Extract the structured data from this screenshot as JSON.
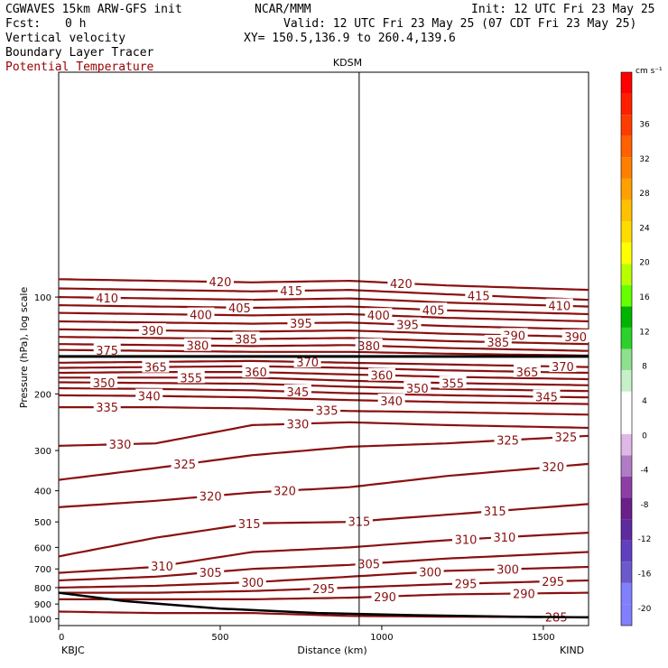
{
  "header": {
    "model": "CGWAVES 15km ARW-GFS init",
    "org": "NCAR/MMM",
    "init": "Init: 12 UTC Fri 23 May 25",
    "fcst_label": "Fcst:",
    "fcst_value": "0 h",
    "valid": "Valid: 12 UTC Fri 23 May 25 (07 CDT Fri 23 May 25)",
    "fields": [
      "Vertical velocity",
      "Boundary Layer Tracer",
      "Potential Temperature"
    ],
    "xy": "XY= 150.5,136.9 to 260.4,139.6"
  },
  "colors": {
    "theta_contour": "#8a1010",
    "tropopause_line": "#000000",
    "terrain_line": "#000000"
  },
  "chart_data": {
    "type": "line",
    "title": "",
    "xlabel": "Distance (km)",
    "ylabel": "Pressure (hPa), log scale",
    "y_scale": "log",
    "xlim": [
      0,
      1640
    ],
    "ylim": [
      1050,
      20
    ],
    "x_ticks": [
      0,
      500,
      1000,
      1500
    ],
    "y_ticks": [
      100,
      200,
      300,
      400,
      500,
      600,
      700,
      800,
      900,
      1000
    ],
    "station_labels": {
      "left": "KBJC",
      "right": "KIND",
      "top": "KDSM"
    },
    "station_marker_km": 930,
    "grid": false,
    "legend": "colorbar-right",
    "colorbar": {
      "units": "cm s⁻¹",
      "ticks": [
        -20,
        -16,
        -12,
        -8,
        -4,
        0,
        4,
        8,
        12,
        16,
        20,
        24,
        28,
        32,
        36
      ],
      "colors": [
        "#7f7fff",
        "#8080ff",
        "#6a5acd",
        "#6040c0",
        "#5e2b9e",
        "#6a1f8a",
        "#8e3fa6",
        "#b07cc6",
        "#e0b8e8",
        "#ffffff",
        "#ffffff",
        "#c8f0c8",
        "#8ee08e",
        "#2bd22b",
        "#00b400",
        "#66ff00",
        "#b8ff00",
        "#ffff00",
        "#ffdc00",
        "#ffc000",
        "#ffa000",
        "#ff8000",
        "#ff6000",
        "#ff3c00",
        "#ff1e00",
        "#ff0000"
      ]
    },
    "theta_contour_interval_K": 5,
    "theta_labels": [
      {
        "theta": 420,
        "x": [
          500,
          1060
        ]
      },
      {
        "theta": 415,
        "x": [
          720,
          1300
        ]
      },
      {
        "theta": 410,
        "x": [
          150,
          1550
        ]
      },
      {
        "theta": 405,
        "x": [
          560,
          1160
        ]
      },
      {
        "theta": 400,
        "x": [
          440,
          990
        ]
      },
      {
        "theta": 395,
        "x": [
          750,
          1080
        ]
      },
      {
        "theta": 390,
        "x": [
          290,
          1410,
          1600
        ]
      },
      {
        "theta": 385,
        "x": [
          580,
          1360
        ]
      },
      {
        "theta": 380,
        "x": [
          430,
          960
        ]
      },
      {
        "theta": 375,
        "x": [
          150
        ]
      },
      {
        "theta": 370,
        "x": [
          770,
          1560
        ]
      },
      {
        "theta": 365,
        "x": [
          300,
          1450
        ]
      },
      {
        "theta": 360,
        "x": [
          610,
          1000
        ]
      },
      {
        "theta": 355,
        "x": [
          410,
          1220
        ]
      },
      {
        "theta": 350,
        "x": [
          140,
          1110
        ]
      },
      {
        "theta": 345,
        "x": [
          740,
          1510
        ]
      },
      {
        "theta": 340,
        "x": [
          280,
          1030
        ]
      },
      {
        "theta": 335,
        "x": [
          150,
          830
        ]
      },
      {
        "theta": 330,
        "x": [
          190,
          740
        ]
      },
      {
        "theta": 325,
        "x": [
          390,
          1390,
          1570
        ]
      },
      {
        "theta": 320,
        "x": [
          470,
          700,
          1530
        ]
      },
      {
        "theta": 315,
        "x": [
          590,
          930,
          1350
        ]
      },
      {
        "theta": 310,
        "x": [
          320,
          1260,
          1380
        ]
      },
      {
        "theta": 305,
        "x": [
          470,
          960
        ]
      },
      {
        "theta": 300,
        "x": [
          600,
          1150,
          1390
        ]
      },
      {
        "theta": 295,
        "x": [
          820,
          1260,
          1530
        ]
      },
      {
        "theta": 290,
        "x": [
          1010,
          1440
        ]
      },
      {
        "theta": 285,
        "x": [
          1540
        ]
      }
    ],
    "theta_lines_pressure_hPa": [
      {
        "theta": 420,
        "x": [
          0,
          300,
          600,
          900,
          1200,
          1640
        ],
        "p": [
          88,
          89,
          90,
          89,
          92,
          95
        ]
      },
      {
        "theta": 415,
        "x": [
          0,
          300,
          600,
          900,
          1200,
          1640
        ],
        "p": [
          94,
          95,
          96,
          95,
          98,
          102
        ]
      },
      {
        "theta": 410,
        "x": [
          0,
          300,
          600,
          900,
          1200,
          1640
        ],
        "p": [
          100,
          101,
          102,
          101,
          104,
          107
        ]
      },
      {
        "theta": 405,
        "x": [
          0,
          300,
          600,
          900,
          1200,
          1640
        ],
        "p": [
          106,
          107,
          108,
          107,
          110,
          113
        ]
      },
      {
        "theta": 400,
        "x": [
          0,
          300,
          600,
          900,
          1200,
          1640
        ],
        "p": [
          112,
          113,
          114,
          113,
          116,
          119
        ]
      },
      {
        "theta": 395,
        "x": [
          0,
          300,
          600,
          900,
          1200,
          1640
        ],
        "p": [
          119,
          120,
          121,
          120,
          123,
          126
        ]
      },
      {
        "theta": 390,
        "x": [
          0,
          300,
          600,
          900,
          1200,
          1640
        ],
        "p": [
          126,
          127,
          128,
          127,
          130,
          133
        ]
      },
      {
        "theta": 385,
        "x": [
          0,
          300,
          600,
          900,
          1200,
          1640
        ],
        "p": [
          133,
          134,
          135,
          134,
          137,
          140
        ]
      },
      {
        "theta": 380,
        "x": [
          0,
          300,
          600,
          900,
          1200,
          1640
        ],
        "p": [
          140,
          141,
          142,
          141,
          144,
          147
        ]
      },
      {
        "theta": 375,
        "x": [
          0,
          300,
          600,
          900,
          1200,
          1640
        ],
        "p": [
          146,
          147,
          148,
          148,
          150,
          152
        ]
      },
      {
        "theta": 370,
        "x": [
          0,
          300,
          600,
          900,
          1200,
          1640
        ],
        "p": [
          160,
          159,
          158,
          160,
          162,
          165
        ]
      },
      {
        "theta": 365,
        "x": [
          0,
          300,
          600,
          900,
          1200,
          1640
        ],
        "p": [
          166,
          165,
          164,
          166,
          169,
          172
        ]
      },
      {
        "theta": 360,
        "x": [
          0,
          300,
          600,
          900,
          1200,
          1640
        ],
        "p": [
          172,
          171,
          171,
          174,
          177,
          180
        ]
      },
      {
        "theta": 355,
        "x": [
          0,
          300,
          600,
          900,
          1200,
          1640
        ],
        "p": [
          178,
          178,
          178,
          182,
          185,
          188
        ]
      },
      {
        "theta": 350,
        "x": [
          0,
          300,
          600,
          900,
          1200,
          1640
        ],
        "p": [
          184,
          185,
          186,
          190,
          193,
          196
        ]
      },
      {
        "theta": 345,
        "x": [
          0,
          300,
          600,
          900,
          1200,
          1640
        ],
        "p": [
          192,
          193,
          195,
          199,
          202,
          205
        ]
      },
      {
        "theta": 340,
        "x": [
          0,
          300,
          600,
          900,
          1200,
          1640
        ],
        "p": [
          202,
          203,
          205,
          209,
          212,
          215
        ]
      },
      {
        "theta": 335,
        "x": [
          0,
          300,
          600,
          900,
          1200,
          1640
        ],
        "p": [
          220,
          220,
          222,
          226,
          228,
          232
        ]
      },
      {
        "theta": 330,
        "x": [
          0,
          300,
          600,
          900,
          1200,
          1640
        ],
        "p": [
          290,
          285,
          250,
          245,
          250,
          255
        ]
      },
      {
        "theta": 325,
        "x": [
          0,
          300,
          600,
          900,
          1200,
          1640
        ],
        "p": [
          370,
          340,
          310,
          292,
          285,
          270
        ]
      },
      {
        "theta": 320,
        "x": [
          0,
          300,
          600,
          900,
          1200,
          1640
        ],
        "p": [
          450,
          430,
          405,
          390,
          360,
          330
        ]
      },
      {
        "theta": 315,
        "x": [
          0,
          300,
          600,
          900,
          1200,
          1640
        ],
        "p": [
          640,
          560,
          505,
          500,
          475,
          440
        ]
      },
      {
        "theta": 310,
        "x": [
          0,
          300,
          600,
          900,
          1200,
          1640
        ],
        "p": [
          720,
          690,
          620,
          600,
          570,
          540
        ]
      },
      {
        "theta": 305,
        "x": [
          0,
          300,
          600,
          900,
          1200,
          1640
        ],
        "p": [
          760,
          740,
          700,
          680,
          650,
          620
        ]
      },
      {
        "theta": 300,
        "x": [
          0,
          300,
          600,
          900,
          1200,
          1640
        ],
        "p": [
          800,
          790,
          770,
          740,
          710,
          690
        ]
      },
      {
        "theta": 295,
        "x": [
          0,
          300,
          600,
          900,
          1200,
          1640
        ],
        "p": [
          830,
          830,
          820,
          800,
          780,
          760
        ]
      },
      {
        "theta": 290,
        "x": [
          0,
          300,
          600,
          900,
          1200,
          1640
        ],
        "p": [
          870,
          870,
          870,
          860,
          840,
          830
        ]
      },
      {
        "theta": 285,
        "x": [
          0,
          300,
          600,
          900,
          1200,
          1640
        ],
        "p": [
          950,
          960,
          960,
          980,
          985,
          990
        ]
      }
    ],
    "tropopause_pressure_hPa": {
      "x": [
        0,
        1640
      ],
      "p": [
        153,
        153
      ]
    },
    "terrain_pressure_hPa": {
      "x": [
        0,
        200,
        500,
        800,
        1100,
        1400,
        1640
      ],
      "p": [
        830,
        880,
        930,
        960,
        975,
        985,
        990
      ]
    }
  }
}
